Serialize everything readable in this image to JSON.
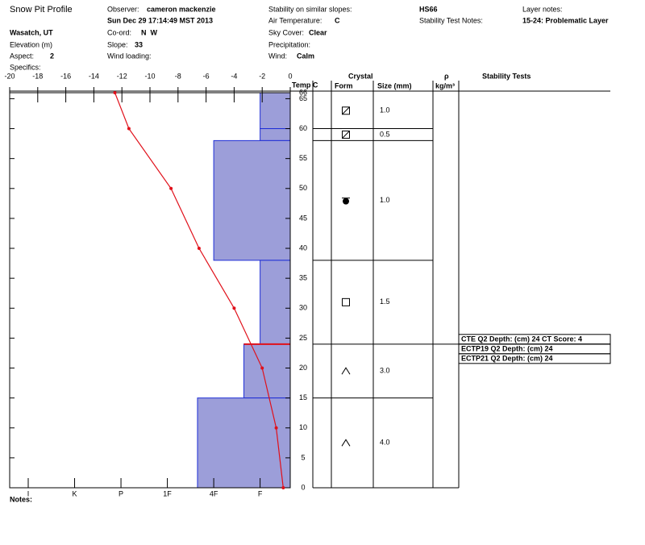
{
  "header": {
    "title": "Snow Pit Profile",
    "location": "Wasatch, UT",
    "elevation_label": "Elevation (m)",
    "aspect": {
      "label": "Aspect:",
      "value": 2
    },
    "specifics_label": "Specifics:",
    "observer": {
      "label": "Observer:",
      "value": "cameron mackenzie"
    },
    "datetime": "Sun Dec 29 17:14:49 MST 2013",
    "coord": {
      "label": "Co-ord:",
      "value": "N  W"
    },
    "slope": {
      "label": "Slope:",
      "value": 33
    },
    "wind_loading_label": "Wind loading:",
    "stability_label": "Stability on similar slopes:",
    "air_temp": {
      "label": "Air Temperature:",
      "value": "C"
    },
    "sky": {
      "label": "Sky Cover:",
      "value": "Clear"
    },
    "precip_label": "Precipitation:",
    "wind": {
      "label": "Wind:",
      "value": "Calm"
    },
    "hs": "HS66",
    "stability_notes_label": "Stability Test Notes:",
    "layer_notes_label": "Layer notes:",
    "layer_notes": "15-24: Problematic Layer",
    "notes_label": "Notes:"
  },
  "chart_data": {
    "type": "snowpit",
    "temp_label": "Temp C",
    "xlim": [
      -20,
      0
    ],
    "xticks": [
      -20,
      -18,
      -16,
      -14,
      -12,
      -10,
      -8,
      -6,
      -4,
      -2,
      0
    ],
    "ylim": [
      0,
      66
    ],
    "yticks": [
      0,
      5,
      10,
      15,
      20,
      25,
      30,
      35,
      40,
      45,
      50,
      55,
      60,
      65,
      66
    ],
    "hardness_lim": [
      0.35,
      6.4
    ],
    "hardness_ticks": [
      {
        "value": 6,
        "label": "I"
      },
      {
        "value": 5,
        "label": "K"
      },
      {
        "value": 4,
        "label": "P"
      },
      {
        "value": 3,
        "label": "1F"
      },
      {
        "value": 2,
        "label": "4F"
      },
      {
        "value": 1,
        "label": "F"
      }
    ],
    "layer_color": "#9c9ed9",
    "boundary_color": "#1f2fd6",
    "critical_height": 24,
    "critical_color": "#e0101a",
    "layers": [
      {
        "bottom": 60,
        "top": 66,
        "hardness": 1,
        "size": "1.0"
      },
      {
        "bottom": 58,
        "top": 60,
        "hardness": 1,
        "size": "0.5"
      },
      {
        "bottom": 38,
        "top": 58,
        "hardness": 2,
        "size": "1.0"
      },
      {
        "bottom": 24,
        "top": 38,
        "hardness": 1,
        "size": "1.5"
      },
      {
        "bottom": 15,
        "top": 24,
        "hardness": 1.35,
        "size": "3.0"
      },
      {
        "bottom": 0,
        "top": 15,
        "hardness": 2.35,
        "size": "4.0"
      }
    ],
    "temperature": {
      "color": "#e0101a",
      "heights": [
        66,
        60,
        50,
        40,
        30,
        20,
        10,
        0
      ],
      "values": [
        -12.5,
        -11.5,
        -8.5,
        -6.5,
        -4,
        -2,
        -1,
        -0.5
      ]
    },
    "columns": {
      "crystal": "Crystal",
      "form": "Form",
      "size": "Size (mm)",
      "rho": "ρ",
      "density_unit": "kg/m³",
      "tests": "Stability Tests"
    },
    "stability_tests": [
      "CTE Q2 Depth: (cm) 24 CT Score: 4",
      "ECTP19 Q2 Depth: (cm) 24",
      "ECTP21 Q2 Depth: (cm) 24"
    ]
  }
}
